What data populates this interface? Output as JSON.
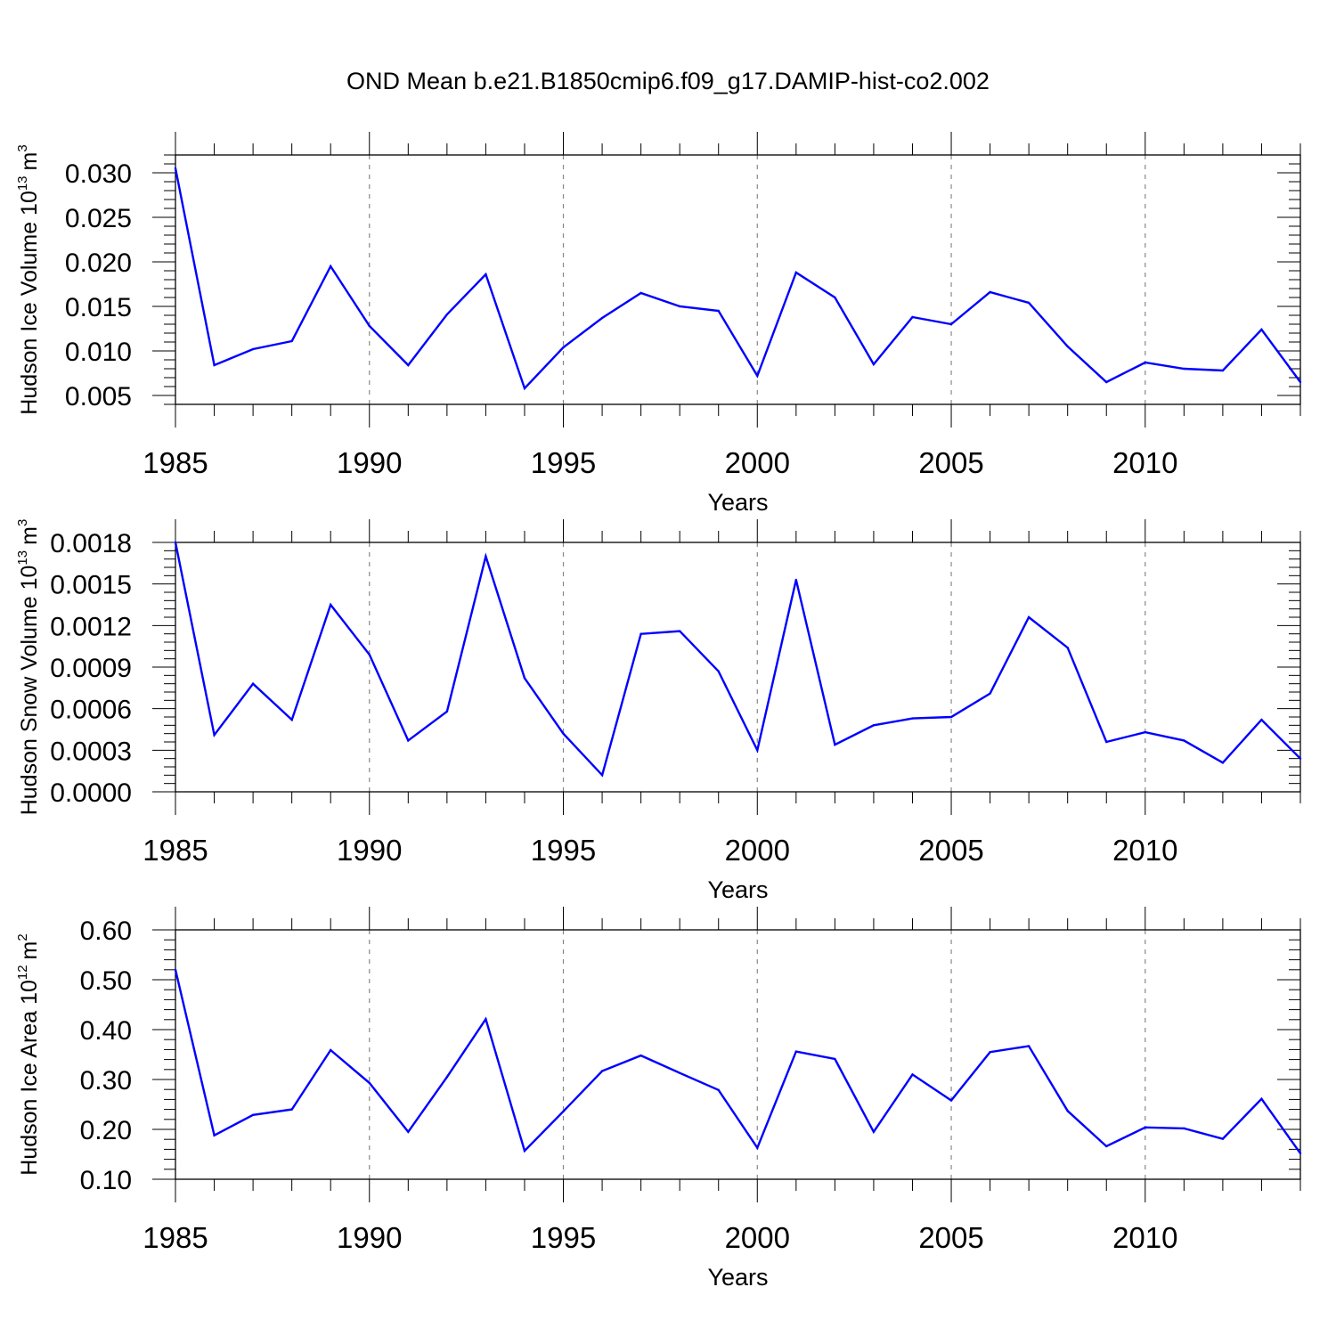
{
  "title": "OND Mean b.e21.B1850cmip6.f09_g17.DAMIP-hist-co2.002",
  "line_color": "#0000ff",
  "chart_data": [
    {
      "type": "line",
      "id": "ice-volume",
      "ylabel": "Hudson Ice Volume 10",
      "ylabel_exp": "13",
      "ylabel_unit": "m",
      "ylabel_unit_exp": "3",
      "xlabel": "Years",
      "xlim": [
        1985,
        2014
      ],
      "ylim": [
        0.004,
        0.032
      ],
      "yticks": [
        0.005,
        0.01,
        0.015,
        0.02,
        0.025,
        0.03
      ],
      "ytick_labels": [
        "0.005",
        "0.010",
        "0.015",
        "0.020",
        "0.025",
        "0.030"
      ],
      "xticks": [
        1985,
        1990,
        1995,
        2000,
        2005,
        2010
      ],
      "xtick_labels": [
        "1985",
        "1990",
        "1995",
        "2000",
        "2005",
        "2010"
      ],
      "x": [
        1985,
        1986,
        1987,
        1988,
        1989,
        1990,
        1991,
        1992,
        1993,
        1994,
        1995,
        1996,
        1997,
        1998,
        1999,
        2000,
        2001,
        2002,
        2003,
        2004,
        2005,
        2006,
        2007,
        2008,
        2009,
        2010,
        2011,
        2012,
        2013,
        2014
      ],
      "values": [
        0.0305,
        0.0084,
        0.0102,
        0.0111,
        0.0195,
        0.0128,
        0.0084,
        0.0141,
        0.0186,
        0.0058,
        0.0104,
        0.0137,
        0.0165,
        0.015,
        0.0145,
        0.0072,
        0.0188,
        0.016,
        0.0085,
        0.0138,
        0.013,
        0.0166,
        0.0154,
        0.0105,
        0.0065,
        0.0087,
        0.008,
        0.0078,
        0.0124,
        0.0065
      ]
    },
    {
      "type": "line",
      "id": "snow-volume",
      "ylabel": "Hudson Snow Volume 10",
      "ylabel_exp": "13",
      "ylabel_unit": "m",
      "ylabel_unit_exp": "3",
      "xlabel": "Years",
      "xlim": [
        1985,
        2014
      ],
      "ylim": [
        0.0,
        0.0018
      ],
      "yticks": [
        0.0,
        0.0003,
        0.0006,
        0.0009,
        0.0012,
        0.0015,
        0.0018
      ],
      "ytick_labels": [
        "0.0000",
        "0.0003",
        "0.0006",
        "0.0009",
        "0.0012",
        "0.0015",
        "0.0018"
      ],
      "xticks": [
        1985,
        1990,
        1995,
        2000,
        2005,
        2010
      ],
      "xtick_labels": [
        "1985",
        "1990",
        "1995",
        "2000",
        "2005",
        "2010"
      ],
      "x": [
        1985,
        1986,
        1987,
        1988,
        1989,
        1990,
        1991,
        1992,
        1993,
        1994,
        1995,
        1996,
        1997,
        1998,
        1999,
        2000,
        2001,
        2002,
        2003,
        2004,
        2005,
        2006,
        2007,
        2008,
        2009,
        2010,
        2011,
        2012,
        2013,
        2014
      ],
      "values": [
        0.0018,
        0.00041,
        0.00078,
        0.00052,
        0.00135,
        0.00099,
        0.00037,
        0.00058,
        0.0017,
        0.00082,
        0.00042,
        0.00012,
        0.00114,
        0.00116,
        0.00087,
        0.0003,
        0.00153,
        0.00034,
        0.00048,
        0.00053,
        0.00054,
        0.00071,
        0.00126,
        0.00104,
        0.00036,
        0.00043,
        0.00037,
        0.00021,
        0.00052,
        0.00024
      ]
    },
    {
      "type": "line",
      "id": "ice-area",
      "ylabel": "Hudson Ice Area 10",
      "ylabel_exp": "12",
      "ylabel_unit": "m",
      "ylabel_unit_exp": "2",
      "xlabel": "Years",
      "xlim": [
        1985,
        2014
      ],
      "ylim": [
        0.1,
        0.6
      ],
      "yticks": [
        0.1,
        0.2,
        0.3,
        0.4,
        0.5,
        0.6
      ],
      "ytick_labels": [
        "0.10",
        "0.20",
        "0.30",
        "0.40",
        "0.50",
        "0.60"
      ],
      "xticks": [
        1985,
        1990,
        1995,
        2000,
        2005,
        2010
      ],
      "xtick_labels": [
        "1985",
        "1990",
        "1995",
        "2000",
        "2005",
        "2010"
      ],
      "x": [
        1985,
        1986,
        1987,
        1988,
        1989,
        1990,
        1991,
        1992,
        1993,
        1994,
        1995,
        1996,
        1997,
        1998,
        1999,
        2000,
        2001,
        2002,
        2003,
        2004,
        2005,
        2006,
        2007,
        2008,
        2009,
        2010,
        2011,
        2012,
        2013,
        2014
      ],
      "values": [
        0.52,
        0.188,
        0.229,
        0.24,
        0.359,
        0.293,
        0.195,
        0.305,
        0.421,
        0.157,
        0.236,
        0.317,
        0.348,
        0.313,
        0.279,
        0.163,
        0.356,
        0.341,
        0.195,
        0.31,
        0.258,
        0.355,
        0.367,
        0.237,
        0.166,
        0.204,
        0.202,
        0.181,
        0.261,
        0.152
      ]
    }
  ]
}
